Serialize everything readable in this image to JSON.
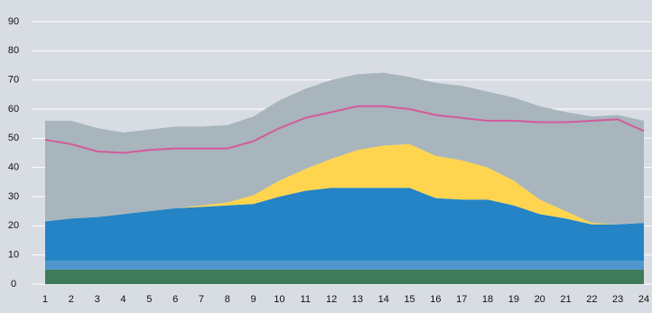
{
  "chart_data": {
    "type": "area",
    "stacked": true,
    "grid": true,
    "categories": [
      "1",
      "2",
      "3",
      "4",
      "5",
      "6",
      "7",
      "8",
      "9",
      "10",
      "11",
      "12",
      "13",
      "14",
      "15",
      "16",
      "17",
      "18",
      "19",
      "20",
      "21",
      "22",
      "23",
      "24"
    ],
    "ylim": [
      0,
      90
    ],
    "yticks": [
      0,
      10,
      20,
      30,
      40,
      50,
      60,
      70,
      80,
      90
    ],
    "series": [
      {
        "color": "#3f7a5a",
        "values": [
          5,
          5,
          5,
          5,
          5,
          5,
          5,
          5,
          5,
          5,
          5,
          5,
          5,
          5,
          5,
          5,
          5,
          5,
          5,
          5,
          5,
          5,
          5,
          5
        ]
      },
      {
        "color": "#4e96cc",
        "values": [
          3,
          3,
          3,
          3,
          3,
          3,
          3,
          3,
          3,
          3,
          3,
          3,
          3,
          3,
          3,
          3,
          3,
          3,
          3,
          3,
          3,
          3,
          3,
          3
        ]
      },
      {
        "color": "#2484c6",
        "values": [
          13.5,
          14.5,
          15,
          16,
          17,
          18,
          18.5,
          19,
          19.5,
          22,
          24,
          25,
          25,
          25,
          25,
          21.5,
          21,
          21,
          19,
          16,
          14.5,
          12.5,
          12.5,
          13
        ]
      },
      {
        "color": "#ffd54f",
        "values": [
          0,
          0,
          0,
          0,
          0,
          0,
          0.5,
          1,
          3,
          5.5,
          7.5,
          10,
          13,
          14.5,
          15,
          14.5,
          13.5,
          11,
          8.5,
          5,
          2.5,
          0.5,
          0,
          0
        ]
      },
      {
        "color": "#a8b5bc",
        "values": [
          34.5,
          33.5,
          30.5,
          28,
          28,
          28,
          27,
          26.5,
          27,
          27.5,
          27.5,
          27,
          26,
          25,
          23,
          25,
          25.5,
          26,
          28.5,
          32,
          34,
          36.5,
          37.5,
          35
        ]
      },
      {
        "type": "line",
        "color": "#d45a9c",
        "values": [
          49.5,
          48,
          45.5,
          45,
          46,
          46.5,
          46.5,
          46.5,
          49,
          53.5,
          57,
          59,
          61,
          61,
          60,
          58,
          57,
          56,
          56,
          55.5,
          55.5,
          56,
          56.5,
          52.5
        ]
      }
    ]
  }
}
